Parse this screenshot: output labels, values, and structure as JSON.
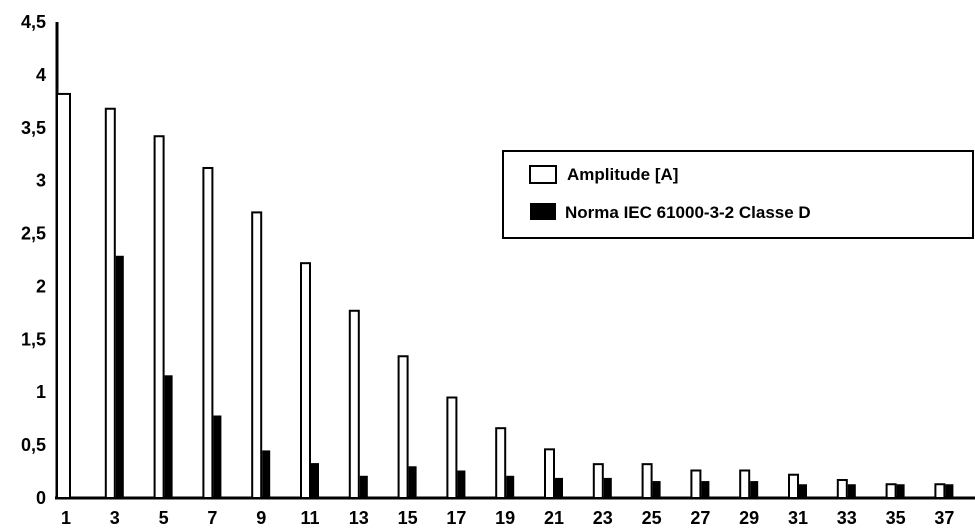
{
  "chart_data": {
    "type": "bar",
    "categories": [
      "1",
      "3",
      "5",
      "7",
      "9",
      "11",
      "13",
      "15",
      "17",
      "19",
      "21",
      "23",
      "25",
      "27",
      "29",
      "31",
      "33",
      "35",
      "37"
    ],
    "series": [
      {
        "name": "Amplitude [A]",
        "fill": "#ffffff",
        "values": [
          3.82,
          3.68,
          3.42,
          3.12,
          2.7,
          2.22,
          1.77,
          1.34,
          0.95,
          0.66,
          0.46,
          0.32,
          0.32,
          0.26,
          0.26,
          0.22,
          0.17,
          0.13,
          0.13
        ]
      },
      {
        "name": "Norma IEC 61000-3-2 Classe D",
        "fill": "#000000",
        "values": [
          null,
          2.29,
          1.16,
          0.78,
          0.45,
          0.33,
          0.21,
          0.3,
          0.26,
          0.21,
          0.19,
          0.19,
          0.16,
          0.16,
          0.16,
          0.13,
          0.13,
          0.13,
          0.13
        ]
      }
    ],
    "ylim": [
      0,
      4.5
    ],
    "yticks": [
      "0",
      "0,5",
      "1",
      "1,5",
      "2",
      "2,5",
      "3",
      "3,5",
      "4",
      "4,5"
    ],
    "legend_position": "right",
    "grid": false
  }
}
